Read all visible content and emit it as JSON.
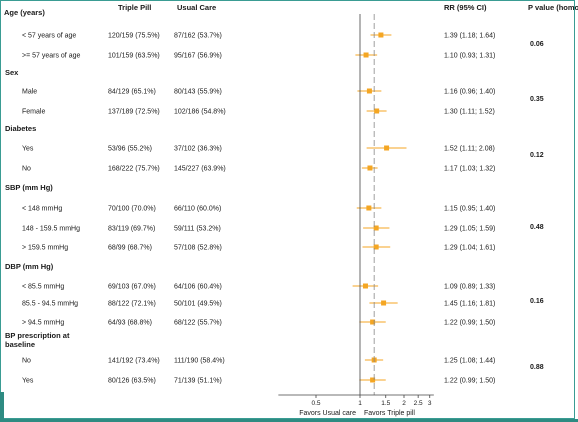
{
  "chart_data": {
    "type": "forest",
    "columns": {
      "triple": "Triple Pill",
      "usual": "Usual Care",
      "rr": "RR  (95% CI)",
      "pval": "P value (homog.)"
    },
    "x_axis": {
      "scale": "log",
      "ticks": [
        "0.5",
        "1",
        "1.5",
        "2",
        "2.5",
        "3"
      ],
      "tick_values": [
        0.5,
        1,
        1.5,
        2,
        2.5,
        3
      ],
      "xlim": [
        0.35,
        3.2
      ],
      "reference_line": 1,
      "pooled_dashed_line": 1.25,
      "favor_left": "Favors Usual care",
      "favor_right": "Favors  Triple pill"
    },
    "colors": {
      "marker": "#f4a623",
      "ci": "#f4a623",
      "axis": "#444444",
      "dashed": "#888888"
    },
    "groups": [
      {
        "name": "Age (years)",
        "p_value": "0.06",
        "rows": [
          {
            "label": "< 57 years of age",
            "triple": "120/159 (75.5%)",
            "usual": "87/162 (53.7%)",
            "rr_text": "1.39 (1.18; 1.64)",
            "rr": 1.39,
            "lo": 1.18,
            "hi": 1.64
          },
          {
            "label": ">= 57 years of age",
            "triple": "101/159 (63.5%)",
            "usual": "95/167 (56.9%)",
            "rr_text": "1.10 (0.93; 1.31)",
            "rr": 1.1,
            "lo": 0.93,
            "hi": 1.31
          }
        ]
      },
      {
        "name": "Sex",
        "p_value": "0.35",
        "rows": [
          {
            "label": "Male",
            "triple": "84/129 (65.1%)",
            "usual": "80/143 (55.9%)",
            "rr_text": "1.16 (0.96; 1.40)",
            "rr": 1.16,
            "lo": 0.96,
            "hi": 1.4
          },
          {
            "label": "Female",
            "triple": "137/189 (72.5%)",
            "usual": "102/186 (54.8%)",
            "rr_text": "1.30 (1.11; 1.52)",
            "rr": 1.3,
            "lo": 1.11,
            "hi": 1.52
          }
        ]
      },
      {
        "name": "Diabetes",
        "p_value": "0.12",
        "rows": [
          {
            "label": "Yes",
            "triple": "53/96 (55.2%)",
            "usual": "37/102 (36.3%)",
            "rr_text": "1.52 (1.11; 2.08)",
            "rr": 1.52,
            "lo": 1.11,
            "hi": 2.08
          },
          {
            "label": "No",
            "triple": "168/222 (75.7%)",
            "usual": "145/227 (63.9%)",
            "rr_text": "1.17 (1.03; 1.32)",
            "rr": 1.17,
            "lo": 1.03,
            "hi": 1.32
          }
        ]
      },
      {
        "name": "SBP (mm Hg)",
        "p_value": "0.48",
        "rows": [
          {
            "label": "< 148 mmHg",
            "triple": "70/100 (70.0%)",
            "usual": "66/110 (60.0%)",
            "rr_text": "1.15 (0.95; 1.40)",
            "rr": 1.15,
            "lo": 0.95,
            "hi": 1.4
          },
          {
            "label": "148 - 159.5 mmHg",
            "triple": "83/119 (69.7%)",
            "usual": "59/111 (53.2%)",
            "rr_text": "1.29 (1.05; 1.59)",
            "rr": 1.29,
            "lo": 1.05,
            "hi": 1.59
          },
          {
            "label": "> 159.5 mmHg",
            "triple": "68/99 (68.7%)",
            "usual": "57/108 (52.8%)",
            "rr_text": "1.29 (1.04; 1.61)",
            "rr": 1.29,
            "lo": 1.04,
            "hi": 1.61
          }
        ]
      },
      {
        "name": "DBP (mm Hg)",
        "p_value": "0.16",
        "rows": [
          {
            "label": "< 85.5 mmHg",
            "triple": "69/103 (67.0%)",
            "usual": "64/106 (60.4%)",
            "rr_text": "1.09 (0.89; 1.33)",
            "rr": 1.09,
            "lo": 0.89,
            "hi": 1.33
          },
          {
            "label": "85.5 - 94.5 mmHg",
            "triple": "88/122 (72.1%)",
            "usual": "50/101 (49.5%)",
            "rr_text": "1.45 (1.16; 1.81)",
            "rr": 1.45,
            "lo": 1.16,
            "hi": 1.81
          },
          {
            "label": "> 94.5 mmHg",
            "triple": "64/93 (68.8%)",
            "usual": "68/122 (55.7%)",
            "rr_text": "1.22 (0.99; 1.50)",
            "rr": 1.22,
            "lo": 0.99,
            "hi": 1.5
          }
        ]
      },
      {
        "name": "BP prescription at baseline",
        "name_lines": [
          "BP prescription at",
          "baseline"
        ],
        "p_value": "0.88",
        "rows": [
          {
            "label": "No",
            "triple": "141/192 (73.4%)",
            "usual": "111/190 (58.4%)",
            "rr_text": "1.25 (1.08; 1.44)",
            "rr": 1.25,
            "lo": 1.08,
            "hi": 1.44
          },
          {
            "label": "Yes",
            "triple": "80/126 (63.5%)",
            "usual": "71/139 (51.1%)",
            "rr_text": "1.22 (0.99; 1.50)",
            "rr": 1.22,
            "lo": 0.99,
            "hi": 1.5
          }
        ]
      }
    ]
  }
}
